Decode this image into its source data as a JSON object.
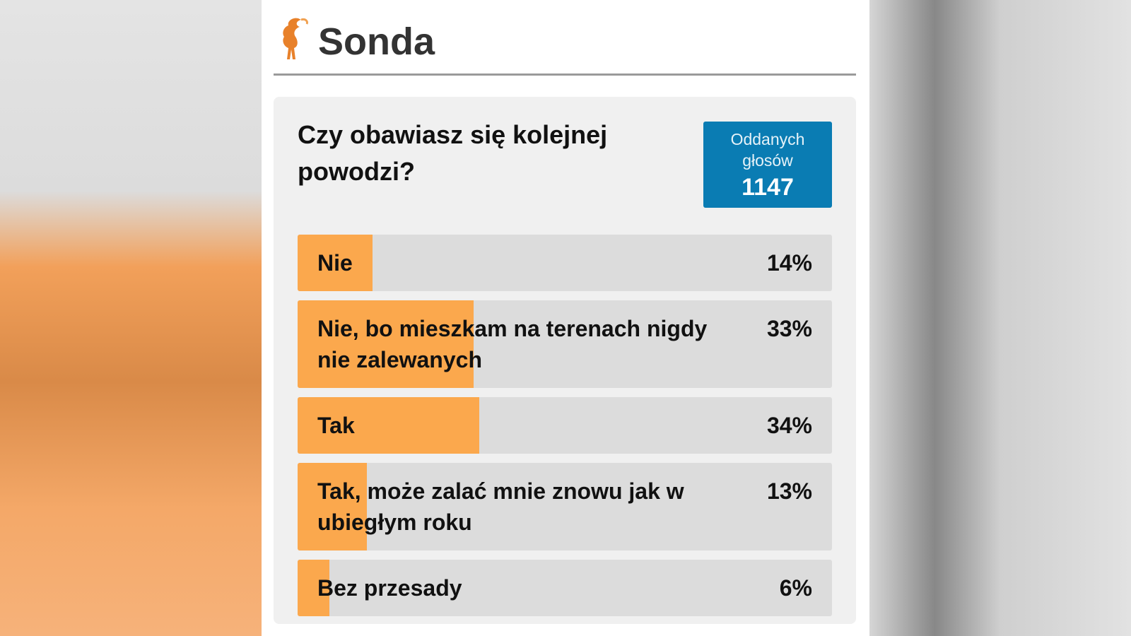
{
  "header": {
    "title": "Sonda"
  },
  "poll": {
    "question": "Czy obawiasz się kolejnej powodzi?",
    "votes_label": "Oddanych głosów",
    "votes": "1147"
  },
  "chart_data": {
    "type": "bar",
    "categories": [
      "Nie",
      "Nie, bo mieszkam na terenach nigdy nie zalewanych",
      "Tak",
      "Tak, może zalać mnie znowu jak w ubiegłym roku",
      "Bez przesady"
    ],
    "values": [
      14,
      33,
      34,
      13,
      6
    ],
    "value_labels": [
      "14%",
      "33%",
      "34%",
      "13%",
      "6%"
    ],
    "color": "#fba84d",
    "xlim": [
      0,
      100
    ]
  }
}
